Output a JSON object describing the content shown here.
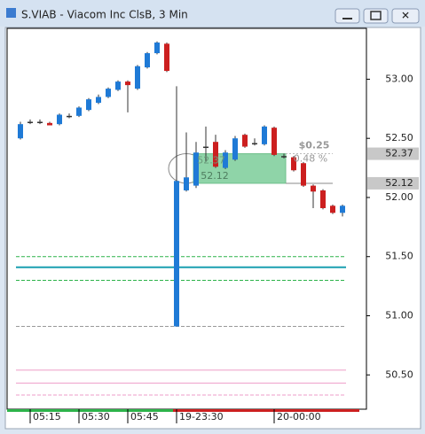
{
  "chart_data": {
    "type": "candlestick",
    "title": "S.VIAB - Viacom Inc ClsB, 3 Min",
    "categories": [
      null,
      "05:15",
      null,
      null,
      null,
      null,
      "05:30",
      null,
      null,
      null,
      null,
      "05:45",
      null,
      null,
      null,
      null,
      "19-23:30",
      null,
      null,
      null,
      null,
      null,
      null,
      null,
      null,
      null,
      "20-00:00",
      null,
      null,
      null,
      null,
      null,
      null,
      null
    ],
    "open": [
      52.5,
      52.64,
      52.64,
      52.63,
      52.62,
      52.69,
      52.69,
      52.74,
      52.8,
      52.85,
      52.91,
      52.98,
      52.92,
      53.1,
      53.22,
      53.3,
      50.91,
      52.06,
      52.1,
      52.43,
      52.47,
      52.25,
      52.32,
      52.53,
      52.46,
      52.45,
      52.59,
      52.35,
      52.34,
      52.29,
      52.1,
      52.06,
      51.93,
      51.87
    ],
    "high": [
      52.64,
      52.66,
      52.66,
      52.64,
      52.71,
      52.71,
      52.77,
      52.84,
      52.87,
      52.93,
      52.99,
      52.99,
      53.12,
      53.23,
      53.32,
      53.31,
      52.94,
      52.55,
      52.47,
      52.6,
      52.53,
      52.4,
      52.52,
      52.54,
      52.5,
      52.61,
      52.6,
      52.37,
      52.35,
      52.3,
      52.11,
      52.07,
      51.94,
      51.94
    ],
    "low": [
      52.49,
      52.62,
      52.62,
      52.61,
      52.61,
      52.67,
      52.68,
      52.73,
      52.79,
      52.84,
      52.9,
      52.72,
      52.91,
      53.09,
      53.21,
      53.06,
      50.91,
      52.05,
      52.08,
      52.3,
      52.25,
      52.24,
      52.31,
      52.42,
      52.44,
      52.44,
      52.35,
      52.33,
      52.22,
      52.09,
      51.91,
      51.9,
      51.86,
      51.84
    ],
    "close": [
      52.62,
      52.64,
      52.64,
      52.61,
      52.7,
      52.69,
      52.76,
      52.83,
      52.85,
      52.92,
      52.98,
      52.95,
      53.11,
      53.22,
      53.31,
      53.07,
      52.14,
      52.17,
      52.38,
      52.43,
      52.26,
      52.38,
      52.5,
      52.43,
      52.46,
      52.6,
      52.36,
      52.35,
      52.23,
      52.1,
      52.05,
      51.91,
      51.87,
      51.93
    ],
    "up_color": "#1f7ad6",
    "down_color": "#cc1f1f",
    "ylim": [
      50.21,
      53.43
    ],
    "yticks": [
      {
        "value": 50.5,
        "label": "50.50"
      },
      {
        "value": 51,
        "label": "51.00"
      },
      {
        "value": 51.5,
        "label": "51.50"
      },
      {
        "value": 52,
        "label": "52.00"
      },
      {
        "value": 52.5,
        "label": "52.50"
      },
      {
        "value": 53,
        "label": "53.00"
      }
    ],
    "levels": [
      {
        "value": 51.5,
        "color": "#2db34a",
        "dashed": true
      },
      {
        "value": 51.41,
        "color": "#1a9fb0",
        "dashed": false
      },
      {
        "value": 51.3,
        "color": "#2db34a",
        "dashed": true
      },
      {
        "value": 50.91,
        "color": "#999999",
        "dashed": true
      },
      {
        "value": 50.54,
        "color": "#ee9cc8",
        "dashed": false
      },
      {
        "value": 50.43,
        "color": "#ee9cc8",
        "dashed": false
      },
      {
        "value": 50.33,
        "color": "#ee9cc8",
        "dashed": true
      }
    ],
    "trade": {
      "entry": 52.37,
      "exit": 52.12,
      "change_label": "$0.25",
      "pct_label": "0.48 %"
    }
  }
}
